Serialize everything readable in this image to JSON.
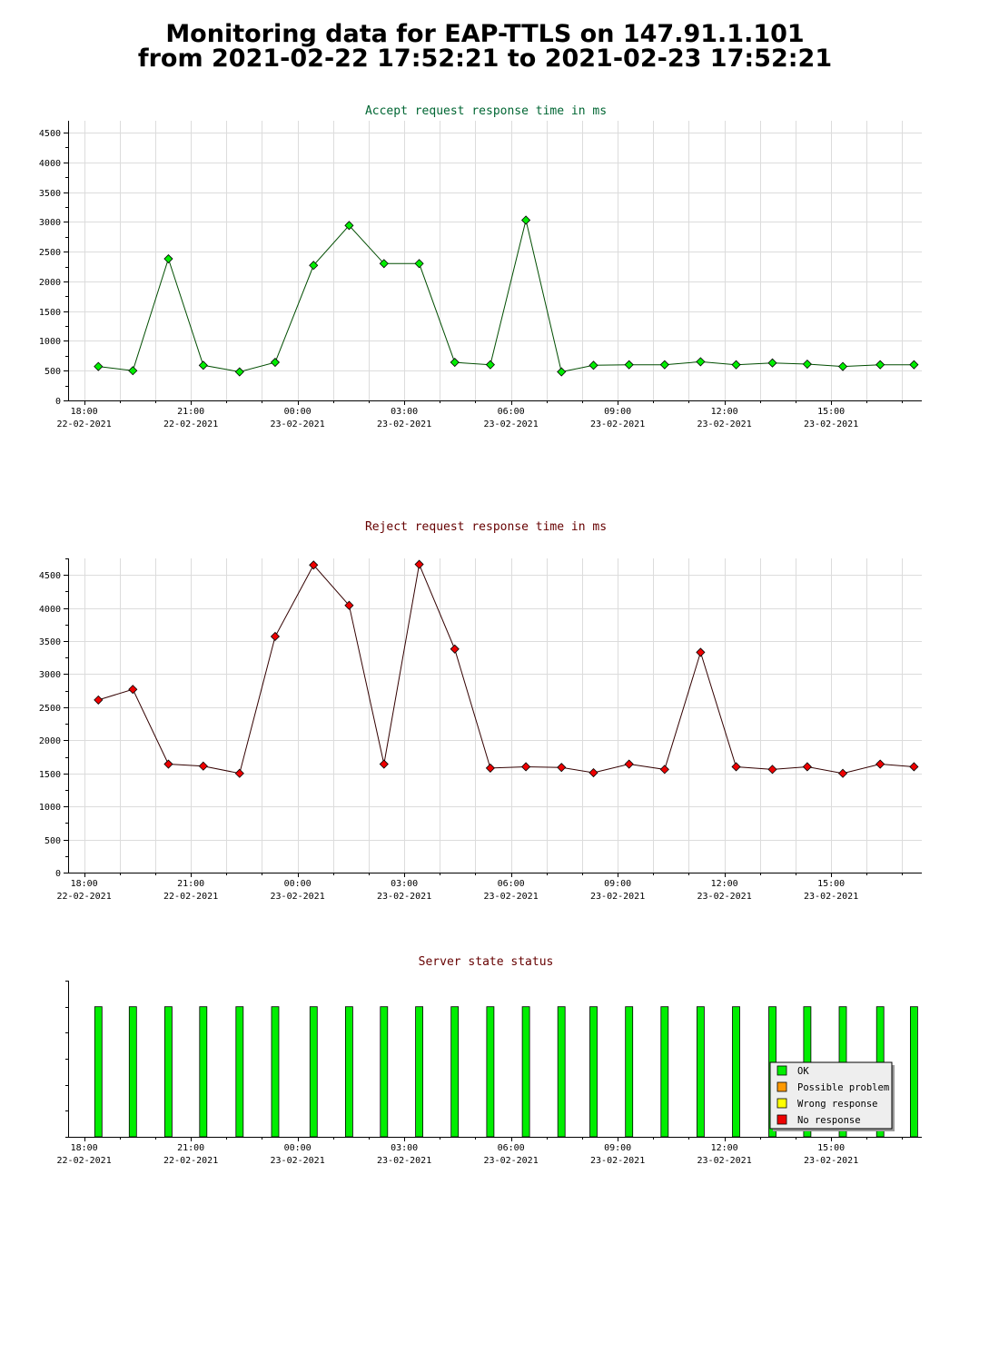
{
  "header": {
    "line1": "Monitoring data for EAP-TTLS on 147.91.1.101",
    "line2": "from 2021-02-22 17:52:21 to 2021-02-23 17:52:21"
  },
  "colors": {
    "accept_title": "#006633",
    "reject_title": "#660000",
    "status_title": "#660000",
    "accept_marker": "#00ee00",
    "reject_marker": "#ee0000",
    "accept_line": "#004d00",
    "reject_line": "#330000",
    "ok": "#00ee00",
    "possible_problem": "#ff9900",
    "wrong_response": "#ffff00",
    "no_response": "#ee0000"
  },
  "chart_data": [
    {
      "type": "line",
      "title": "Accept request response time in ms",
      "xlabel": "",
      "ylabel": "",
      "x_unit": "hours since 2021-02-22 18:00",
      "x_ticks": [
        {
          "x": 0,
          "time": "18:00",
          "date": "22-02-2021"
        },
        {
          "x": 3,
          "time": "21:00",
          "date": "22-02-2021"
        },
        {
          "x": 6,
          "time": "00:00",
          "date": "23-02-2021"
        },
        {
          "x": 9,
          "time": "03:00",
          "date": "23-02-2021"
        },
        {
          "x": 12,
          "time": "06:00",
          "date": "23-02-2021"
        },
        {
          "x": 15,
          "time": "09:00",
          "date": "23-02-2021"
        },
        {
          "x": 18,
          "time": "12:00",
          "date": "23-02-2021"
        },
        {
          "x": 21,
          "time": "15:00",
          "date": "23-02-2021"
        }
      ],
      "xlim": [
        -0.45,
        23.55
      ],
      "ylim": [
        0,
        4700
      ],
      "y_ticks": [
        0,
        500,
        1000,
        1500,
        2000,
        2500,
        3000,
        3500,
        4000,
        4500
      ],
      "grid": true,
      "series": [
        {
          "x": [
            0.4,
            1.37,
            2.37,
            3.35,
            4.37,
            5.37,
            6.45,
            7.45,
            8.43,
            9.42,
            10.42,
            11.42,
            12.42,
            13.42,
            14.32,
            15.32,
            16.32,
            17.33,
            18.33,
            19.35,
            20.33,
            21.33,
            22.38,
            23.33
          ],
          "values": [
            570,
            500,
            2380,
            590,
            480,
            640,
            2270,
            2940,
            2300,
            2300,
            640,
            600,
            3030,
            480,
            590,
            600,
            600,
            650,
            600,
            630,
            610,
            570,
            600,
            600
          ]
        }
      ]
    },
    {
      "type": "line",
      "title": "Reject request response time in ms",
      "xlabel": "",
      "ylabel": "",
      "x_unit": "hours since 2021-02-22 18:00",
      "x_ticks": [
        {
          "x": 0,
          "time": "18:00",
          "date": "22-02-2021"
        },
        {
          "x": 3,
          "time": "21:00",
          "date": "22-02-2021"
        },
        {
          "x": 6,
          "time": "00:00",
          "date": "23-02-2021"
        },
        {
          "x": 9,
          "time": "03:00",
          "date": "23-02-2021"
        },
        {
          "x": 12,
          "time": "06:00",
          "date": "23-02-2021"
        },
        {
          "x": 15,
          "time": "09:00",
          "date": "23-02-2021"
        },
        {
          "x": 18,
          "time": "12:00",
          "date": "23-02-2021"
        },
        {
          "x": 21,
          "time": "15:00",
          "date": "23-02-2021"
        }
      ],
      "xlim": [
        -0.45,
        23.55
      ],
      "ylim": [
        0,
        4750
      ],
      "y_ticks": [
        0,
        500,
        1000,
        1500,
        2000,
        2500,
        3000,
        3500,
        4000,
        4500
      ],
      "grid": true,
      "series": [
        {
          "x": [
            0.4,
            1.37,
            2.37,
            3.35,
            4.37,
            5.37,
            6.45,
            7.45,
            8.43,
            9.42,
            10.42,
            11.42,
            12.42,
            13.42,
            14.32,
            15.32,
            16.32,
            17.33,
            18.33,
            19.35,
            20.33,
            21.33,
            22.38,
            23.33
          ],
          "values": [
            2610,
            2770,
            1640,
            1610,
            1500,
            3570,
            4650,
            4040,
            1640,
            4660,
            3380,
            1580,
            1600,
            1590,
            1510,
            1640,
            1560,
            3330,
            1600,
            1560,
            1600,
            1500,
            1640,
            1600
          ]
        }
      ]
    },
    {
      "type": "bar",
      "title": "Server state status",
      "xlabel": "",
      "ylabel": "",
      "x_unit": "hours since 2021-02-22 18:00",
      "x_ticks": [
        {
          "x": 0,
          "time": "18:00",
          "date": "22-02-2021"
        },
        {
          "x": 3,
          "time": "21:00",
          "date": "22-02-2021"
        },
        {
          "x": 6,
          "time": "00:00",
          "date": "23-02-2021"
        },
        {
          "x": 9,
          "time": "03:00",
          "date": "23-02-2021"
        },
        {
          "x": 12,
          "time": "06:00",
          "date": "23-02-2021"
        },
        {
          "x": 15,
          "time": "09:00",
          "date": "23-02-2021"
        },
        {
          "x": 18,
          "time": "12:00",
          "date": "23-02-2021"
        },
        {
          "x": 21,
          "time": "15:00",
          "date": "23-02-2021"
        }
      ],
      "xlim": [
        -0.45,
        23.55
      ],
      "ylim": [
        0,
        6
      ],
      "grid": false,
      "bar_level": 5,
      "bar_x": [
        0.4,
        1.37,
        2.37,
        3.35,
        4.37,
        5.37,
        6.45,
        7.45,
        8.43,
        9.42,
        10.42,
        11.42,
        12.42,
        13.42,
        14.32,
        15.32,
        16.32,
        17.33,
        18.33,
        19.35,
        20.33,
        21.33,
        22.38,
        23.33
      ],
      "bar_state": [
        "OK",
        "OK",
        "OK",
        "OK",
        "OK",
        "OK",
        "OK",
        "OK",
        "OK",
        "OK",
        "OK",
        "OK",
        "OK",
        "OK",
        "OK",
        "OK",
        "OK",
        "OK",
        "OK",
        "OK",
        "OK",
        "OK",
        "OK",
        "OK"
      ],
      "legend_placement": "bottom-right",
      "legend": [
        {
          "label": "OK",
          "color": "#00ee00"
        },
        {
          "label": "Possible problem",
          "color": "#ff9900"
        },
        {
          "label": "Wrong response",
          "color": "#ffff00"
        },
        {
          "label": "No response",
          "color": "#ee0000"
        }
      ]
    }
  ]
}
